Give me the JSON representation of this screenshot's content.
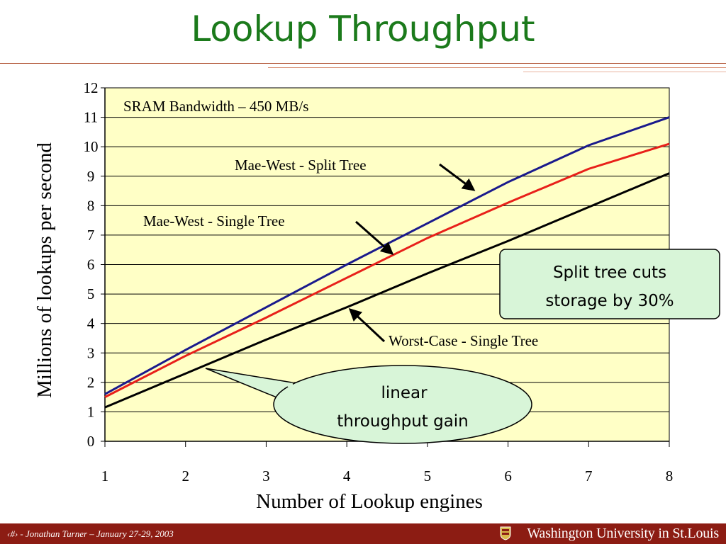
{
  "slide": {
    "title": "Lookup Throughput",
    "footer": "‹#› - Jonathan Turner – January 27-29, 2003",
    "footer_logo_text": "Washington University in St.Louis",
    "colors": {
      "title": "#1b7a1b",
      "footer_bg": "#8c1c13",
      "rule": "#b3593a"
    }
  },
  "chart_data": {
    "type": "line",
    "title": "",
    "xlabel": "Number of Lookup engines",
    "ylabel": "Millions of lookups per second",
    "x": [
      1,
      2,
      3,
      4,
      5,
      6,
      7,
      8
    ],
    "xlim": [
      1,
      8
    ],
    "ylim": [
      0,
      12
    ],
    "yticks": [
      0,
      1,
      2,
      3,
      4,
      5,
      6,
      7,
      8,
      9,
      10,
      11,
      12
    ],
    "grid": "horizontal",
    "plot_background": "#ffffc6",
    "series": [
      {
        "name": "Mae-West - Split Tree",
        "color": "#1a1a8c",
        "values": [
          1.6,
          3.1,
          4.55,
          6.0,
          7.4,
          8.8,
          10.05,
          11.0
        ]
      },
      {
        "name": "Mae-West - Single Tree",
        "color": "#e8201a",
        "values": [
          1.5,
          2.9,
          4.2,
          5.55,
          6.9,
          8.1,
          9.25,
          10.1
        ]
      },
      {
        "name": "Worst-Case - Single Tree",
        "color": "#000000",
        "values": [
          1.15,
          2.3,
          3.45,
          4.55,
          5.7,
          6.8,
          7.95,
          9.1
        ]
      }
    ],
    "annotations": {
      "sram": "SRAM Bandwidth – 450 MB/s",
      "split_tree": "Mae-West - Split Tree",
      "single_tree": "Mae-West - Single Tree",
      "worst_case": "Worst-Case - Single Tree",
      "storage_box": [
        "Split tree cuts",
        "storage by 30%"
      ],
      "linear_callout": [
        "linear",
        "throughput gain"
      ]
    }
  }
}
